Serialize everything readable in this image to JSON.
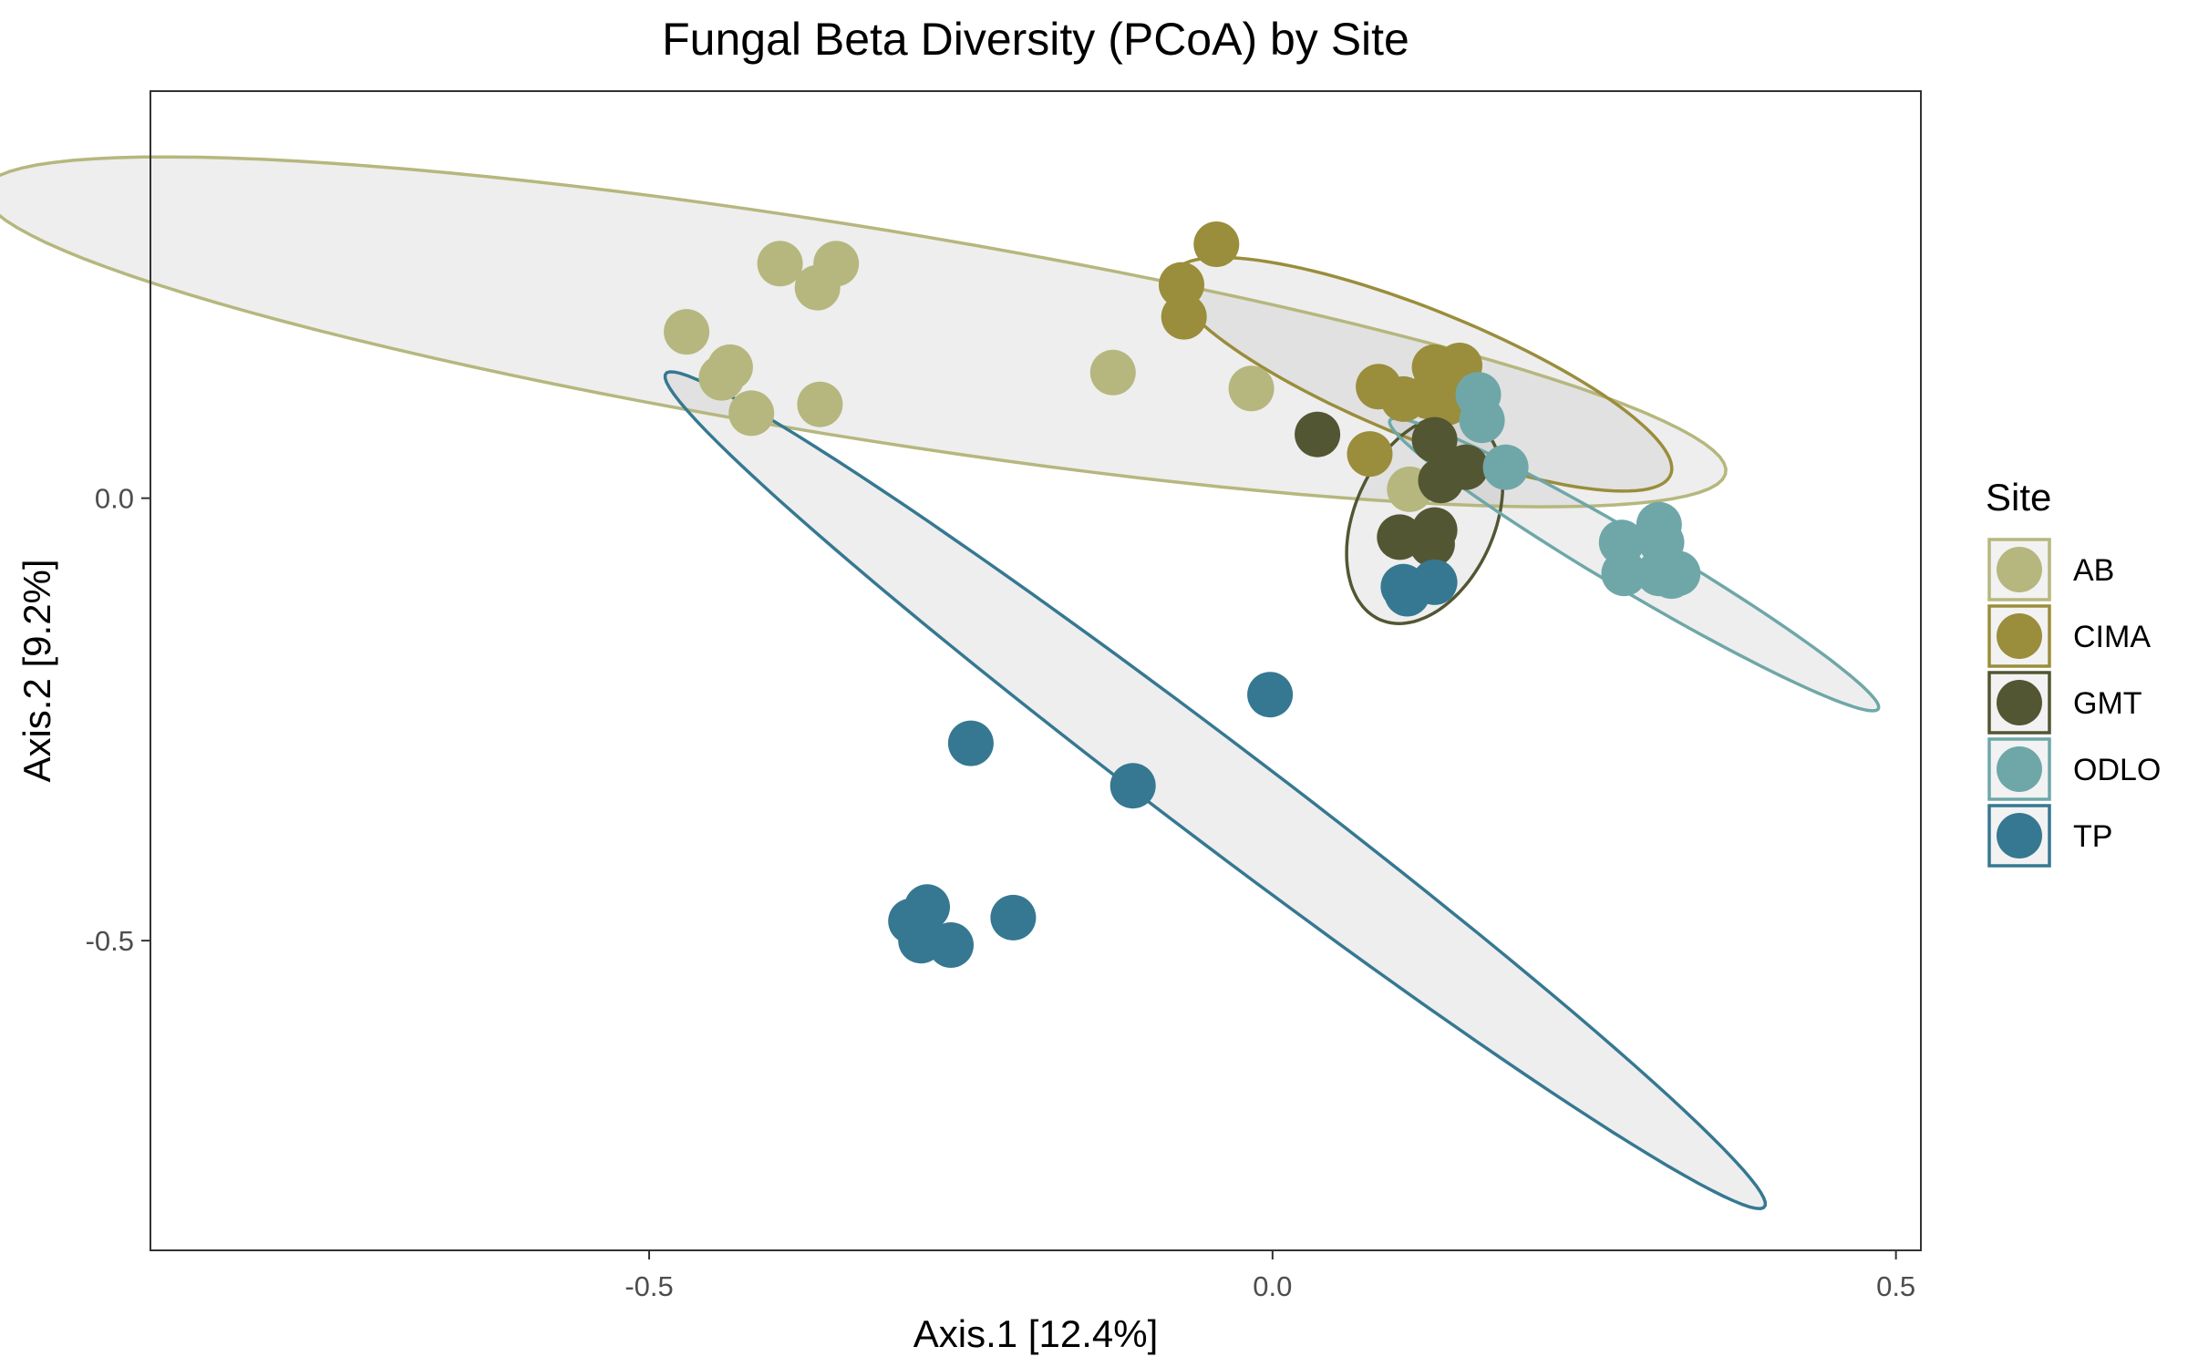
{
  "chart_data": {
    "type": "scatter",
    "title": "Fungal Beta Diversity (PCoA) by Site",
    "xlabel": "Axis.1   [12.4%]",
    "ylabel": "Axis.2   [9.2%]",
    "xlim": [
      -0.9,
      0.52
    ],
    "ylim": [
      -0.85,
      0.46
    ],
    "x_ticks": [
      {
        "value": -0.5,
        "label": "-0.5"
      },
      {
        "value": 0.0,
        "label": "0.0"
      },
      {
        "value": 0.5,
        "label": "0.5"
      }
    ],
    "y_ticks": [
      {
        "value": 0.0,
        "label": "0.0"
      },
      {
        "value": -0.5,
        "label": "-0.5"
      }
    ],
    "grid": false,
    "legend_title": "Site",
    "legend_position": "right",
    "series": [
      {
        "name": "AB",
        "color": "#b5b77e",
        "ellipse": {
          "cx": -0.335,
          "cy": 0.188,
          "rx": 0.7165,
          "ry": 0.1175,
          "angle_deg": -13
        },
        "points": [
          [
            -0.395,
            0.265
          ],
          [
            -0.35,
            0.265
          ],
          [
            -0.365,
            0.238
          ],
          [
            -0.47,
            0.188
          ],
          [
            -0.435,
            0.148
          ],
          [
            -0.442,
            0.136
          ],
          [
            -0.418,
            0.096
          ],
          [
            -0.363,
            0.106
          ],
          [
            -0.128,
            0.142
          ],
          [
            -0.017,
            0.124
          ],
          [
            0.11,
            0.01
          ]
        ]
      },
      {
        "name": "CIMA",
        "color": "#9a8d3c",
        "ellipse": {
          "cx": 0.12,
          "cy": 0.14,
          "rx": 0.23,
          "ry": 0.068,
          "angle_deg": -31
        },
        "points": [
          [
            -0.045,
            0.287
          ],
          [
            -0.073,
            0.241
          ],
          [
            -0.071,
            0.205
          ],
          [
            0.085,
            0.126
          ],
          [
            0.105,
            0.112
          ],
          [
            0.13,
            0.148
          ],
          [
            0.15,
            0.15
          ],
          [
            0.125,
            0.115
          ],
          [
            0.14,
            0.108
          ],
          [
            0.078,
            0.05
          ]
        ]
      },
      {
        "name": "GMT",
        "color": "#535632",
        "ellipse": {
          "cx": 0.122,
          "cy": -0.024,
          "rx": 0.058,
          "ry": 0.12,
          "angle_deg": -13
        },
        "points": [
          [
            0.036,
            0.072
          ],
          [
            0.13,
            0.066
          ],
          [
            0.155,
            0.035
          ],
          [
            0.135,
            0.02
          ],
          [
            0.102,
            -0.044
          ],
          [
            0.13,
            -0.036
          ],
          [
            0.128,
            -0.052
          ]
        ]
      },
      {
        "name": "ODLO",
        "color": "#6fa7a8",
        "ellipse": {
          "cx": 0.29,
          "cy": -0.075,
          "rx": 0.255,
          "ry": 0.028,
          "angle_deg": -40
        },
        "points": [
          [
            0.165,
            0.117
          ],
          [
            0.168,
            0.088
          ],
          [
            0.187,
            0.035
          ],
          [
            0.28,
            -0.05
          ],
          [
            0.31,
            -0.03
          ],
          [
            0.312,
            -0.05
          ],
          [
            0.282,
            -0.085
          ],
          [
            0.31,
            -0.085
          ],
          [
            0.325,
            -0.085
          ],
          [
            0.32,
            -0.088
          ]
        ]
      },
      {
        "name": "TP",
        "color": "#367891",
        "ellipse": {
          "cx": -0.046,
          "cy": -0.33,
          "rx": 0.645,
          "ry": 0.048,
          "angle_deg": -47
        },
        "points": [
          [
            -0.002,
            -0.222
          ],
          [
            -0.242,
            -0.277
          ],
          [
            -0.112,
            -0.325
          ],
          [
            -0.277,
            -0.462
          ],
          [
            -0.29,
            -0.478
          ],
          [
            -0.282,
            -0.5
          ],
          [
            -0.258,
            -0.505
          ],
          [
            -0.208,
            -0.474
          ],
          [
            0.105,
            -0.1
          ],
          [
            0.13,
            -0.095
          ],
          [
            0.108,
            -0.108
          ]
        ]
      }
    ]
  }
}
